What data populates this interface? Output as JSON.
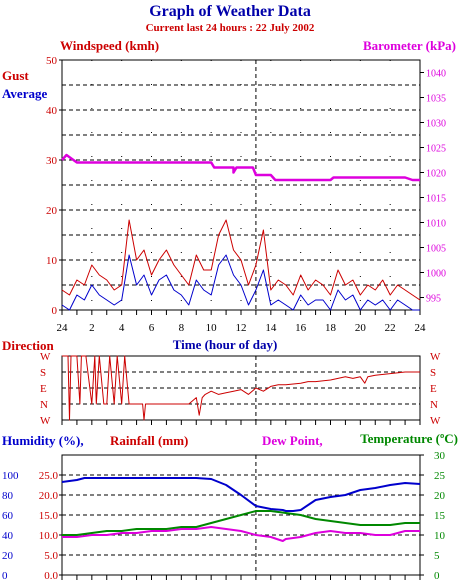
{
  "page": {
    "title": "Graph of Weather Data",
    "subtitle": "Current last 24 hours : 22 July 2002",
    "colors": {
      "title": "#0000aa",
      "subtitle": "#cc0000"
    }
  },
  "chart_data": [
    {
      "type": "line",
      "title": "",
      "xlabel": "Time (hour of day)",
      "x_ticks": [
        "24",
        "2",
        "4",
        "6",
        "8",
        "10",
        "12",
        "14",
        "16",
        "18",
        "20",
        "22",
        "24"
      ],
      "xlim": [
        0,
        24
      ],
      "y_left": {
        "label": "Windspeed (kmh)",
        "ticks": [
          "0",
          "10",
          "20",
          "30",
          "40",
          "50"
        ],
        "range": [
          0,
          50
        ]
      },
      "y_right": {
        "label": "Barometer (kPa)",
        "ticks": [
          "995",
          "1000",
          "1005",
          "1010",
          "1015",
          "1020",
          "1025",
          "1030",
          "1035",
          "1040"
        ],
        "range": [
          992.5,
          1042.5
        ]
      },
      "legend": [
        {
          "name": "Gust",
          "color": "#cc0000"
        },
        {
          "name": "Average",
          "color": "#0000cc"
        }
      ],
      "now_marker_x": 13,
      "grid": true,
      "series": [
        {
          "name": "Gust",
          "axis": "left",
          "color": "#cc0000",
          "x": [
            0,
            0.5,
            1,
            1.5,
            2,
            2.5,
            3,
            3.5,
            4,
            4.5,
            5,
            5.5,
            6,
            6.5,
            7,
            7.5,
            8,
            8.5,
            9,
            9.5,
            10,
            10.5,
            11,
            11.5,
            12,
            12.5,
            13,
            13.5,
            14,
            14.5,
            15,
            15.5,
            16,
            16.5,
            17,
            17.5,
            18,
            18.5,
            19,
            19.5,
            20,
            20.5,
            21,
            21.5,
            22,
            22.5,
            23,
            23.5,
            24
          ],
          "y": [
            4,
            3,
            6,
            5,
            9,
            7,
            6,
            4,
            5,
            18,
            10,
            12,
            7,
            10,
            12,
            9,
            7,
            5,
            11,
            8,
            8,
            15,
            18,
            12,
            10,
            5,
            9,
            16,
            4,
            6,
            5,
            3,
            7,
            4,
            6,
            5,
            3,
            8,
            5,
            6,
            3,
            5,
            4,
            6,
            3,
            5,
            4,
            3,
            2
          ]
        },
        {
          "name": "Average",
          "axis": "left",
          "color": "#0000cc",
          "x": [
            0,
            0.5,
            1,
            1.5,
            2,
            2.5,
            3,
            3.5,
            4,
            4.5,
            5,
            5.5,
            6,
            6.5,
            7,
            7.5,
            8,
            8.5,
            9,
            9.5,
            10,
            10.5,
            11,
            11.5,
            12,
            12.5,
            13,
            13.5,
            14,
            14.5,
            15,
            15.5,
            16,
            16.5,
            17,
            17.5,
            18,
            18.5,
            19,
            19.5,
            20,
            20.5,
            21,
            21.5,
            22,
            22.5,
            23,
            23.5,
            24
          ],
          "y": [
            1,
            0,
            3,
            2,
            5,
            3,
            2,
            1,
            2,
            11,
            5,
            7,
            3,
            6,
            7,
            4,
            3,
            1,
            6,
            4,
            3,
            9,
            11,
            7,
            5,
            1,
            4,
            8,
            1,
            2,
            1,
            0,
            3,
            1,
            2,
            2,
            0,
            4,
            2,
            3,
            0,
            2,
            1,
            2,
            0,
            2,
            1,
            0,
            0
          ]
        },
        {
          "name": "Barometer",
          "axis": "right",
          "color": "#dd00dd",
          "x": [
            0,
            0.3,
            1,
            4,
            8,
            10,
            10.2,
            11.5,
            11.5,
            11.7,
            12,
            12.8,
            13,
            14,
            14.3,
            16,
            18,
            18.2,
            20,
            23,
            23.5,
            24
          ],
          "y": [
            1022.5,
            1023.5,
            1022,
            1022,
            1022,
            1022,
            1021,
            1021,
            1020,
            1021,
            1021,
            1021,
            1019.5,
            1019.5,
            1018.5,
            1018.5,
            1018.5,
            1019,
            1019,
            1019,
            1018.5,
            1018.5
          ]
        }
      ]
    },
    {
      "type": "line",
      "title": "",
      "y_left": {
        "label": "Direction",
        "ticks": [
          "W",
          "S",
          "E",
          "N",
          "W"
        ]
      },
      "y_right": {
        "ticks": [
          "W",
          "S",
          "E",
          "N",
          "W"
        ]
      },
      "xlim": [
        0,
        24
      ],
      "series": [
        {
          "name": "Direction",
          "color": "#cc0000",
          "x": [
            0,
            0.4,
            0.5,
            0.6,
            1,
            1.2,
            1.3,
            1.6,
            2,
            2.2,
            2.3,
            2.5,
            2.8,
            3,
            3.2,
            3.5,
            3.7,
            4,
            4.2,
            4.5,
            5,
            5.4,
            5.5,
            5.6,
            6,
            6.5,
            7,
            7.5,
            8,
            8.5,
            9,
            9.2,
            9.4,
            9.6,
            10,
            10.5,
            11,
            11.5,
            12,
            12.5,
            13,
            13.5,
            14,
            14.5,
            15,
            16,
            16.5,
            17,
            18,
            18.5,
            19,
            19.5,
            20,
            20.3,
            20.5,
            21,
            22,
            23,
            24
          ],
          "y": [
            4,
            4,
            0,
            4,
            4,
            1,
            4,
            4,
            1,
            4,
            1,
            4,
            1,
            1,
            4,
            1,
            4,
            1,
            4,
            1,
            1,
            1,
            0,
            1,
            1,
            1,
            1,
            1,
            1,
            1,
            1.4,
            0.3,
            1.4,
            1.6,
            1.8,
            1.6,
            1.7,
            1.8,
            1.9,
            1.6,
            2,
            1.8,
            2.1,
            2.2,
            2.2,
            2.3,
            2.4,
            2.4,
            2.5,
            2.6,
            2.7,
            2.6,
            2.7,
            2.3,
            2.7,
            2.8,
            2.9,
            3,
            3
          ]
        }
      ]
    },
    {
      "type": "line",
      "title": "",
      "xlim": [
        0,
        24
      ],
      "legend": [
        {
          "name": "Humidity (%),",
          "color": "#0000cc"
        },
        {
          "name": "Rainfall (mm)",
          "color": "#cc0000"
        },
        {
          "name": "Dew Point,",
          "color": "#dd00dd"
        },
        {
          "name": "Temperature (ºC)",
          "color": "#008800"
        }
      ],
      "y_left_humidity": {
        "ticks": [
          "100",
          "80",
          "60",
          "40",
          "20",
          "0"
        ],
        "range": [
          0,
          120
        ]
      },
      "y_left_rain": {
        "ticks": [
          "25.0",
          "20.0",
          "15.0",
          "10.0",
          "5.0",
          "0.0"
        ],
        "range": [
          0,
          30
        ]
      },
      "y_right": {
        "ticks": [
          "0",
          "5",
          "10",
          "15",
          "20",
          "25",
          "30"
        ],
        "range": [
          0,
          30
        ]
      },
      "series": [
        {
          "name": "Humidity",
          "axis": "humidity",
          "color": "#0000cc",
          "x": [
            0,
            1,
            1.5,
            2,
            4,
            6,
            8,
            9,
            10,
            11,
            12,
            13,
            14,
            14.8,
            15,
            15.5,
            16,
            17,
            18,
            19,
            20,
            21,
            22,
            23,
            24
          ],
          "y": [
            93,
            95,
            97,
            97,
            97,
            97,
            97,
            97,
            96,
            90,
            80,
            69,
            66,
            65,
            64,
            64,
            65,
            75,
            78,
            80,
            85,
            87,
            90,
            92,
            91
          ]
        },
        {
          "name": "Dew Point",
          "axis": "right",
          "color": "#dd00dd",
          "x": [
            0,
            1,
            2,
            3,
            4,
            5,
            6,
            7,
            8,
            9,
            10,
            11,
            12,
            13,
            14,
            14.8,
            15,
            16,
            17,
            18,
            19,
            20,
            21,
            22,
            23,
            24
          ],
          "y": [
            9.5,
            9.5,
            10,
            10,
            10.5,
            10.5,
            11,
            11,
            11.5,
            11.5,
            12,
            11.5,
            11,
            10,
            9.5,
            8.5,
            9,
            9.5,
            10.5,
            11,
            10.5,
            10.5,
            10,
            10,
            11,
            11
          ]
        },
        {
          "name": "Temperature",
          "axis": "right",
          "color": "#008800",
          "x": [
            0,
            1,
            2,
            3,
            4,
            5,
            6,
            7,
            8,
            9,
            10,
            11,
            12,
            13,
            14,
            15,
            16,
            17,
            18,
            19,
            20,
            21,
            22,
            23,
            24
          ],
          "y": [
            10,
            10,
            10.5,
            11,
            11,
            11.5,
            11.5,
            11.5,
            12,
            12,
            13,
            14,
            15,
            16,
            16,
            15.5,
            15,
            14,
            13.5,
            13,
            12.5,
            12.5,
            12.5,
            13,
            13
          ]
        }
      ]
    }
  ]
}
